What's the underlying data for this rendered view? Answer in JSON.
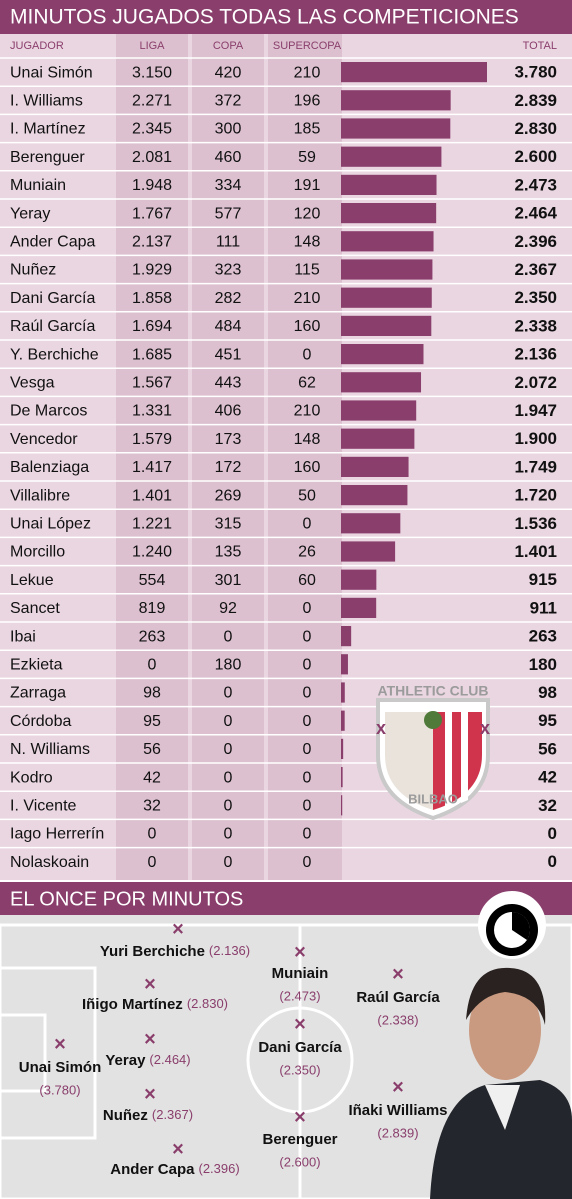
{
  "header": {
    "title": "MINUTOS JUGADOS TODAS LAS COMPETICIONES"
  },
  "table": {
    "columns": [
      "JUGADOR",
      "LIGA",
      "COPA",
      "SUPERCOPA",
      "TOTAL"
    ],
    "rows": [
      [
        "Unai Simón",
        "3.150",
        "420",
        "210",
        {
          "value": 3780,
          "label": "3.780"
        }
      ],
      [
        "I. Williams",
        "2.271",
        "372",
        "196",
        {
          "value": 2839,
          "label": "2.839"
        }
      ],
      [
        "I. Martínez",
        "2.345",
        "300",
        "185",
        {
          "value": 2830,
          "label": "2.830"
        }
      ],
      [
        "Berenguer",
        "2.081",
        "460",
        "59",
        {
          "value": 2600,
          "label": "2.600"
        }
      ],
      [
        "Muniain",
        "1.948",
        "334",
        "191",
        {
          "value": 2473,
          "label": "2.473"
        }
      ],
      [
        "Yeray",
        "1.767",
        "577",
        "120",
        {
          "value": 2464,
          "label": "2.464"
        }
      ],
      [
        "Ander Capa",
        "2.137",
        "111",
        "148",
        {
          "value": 2396,
          "label": "2.396"
        }
      ],
      [
        "Nuñez",
        "1.929",
        "323",
        "115",
        {
          "value": 2367,
          "label": "2.367"
        }
      ],
      [
        "Dani García",
        "1.858",
        "282",
        "210",
        {
          "value": 2350,
          "label": "2.350"
        }
      ],
      [
        "Raúl García",
        "1.694",
        "484",
        "160",
        {
          "value": 2338,
          "label": "2.338"
        }
      ],
      [
        "Y. Berchiche",
        "1.685",
        "451",
        "0",
        {
          "value": 2136,
          "label": "2.136"
        }
      ],
      [
        "Vesga",
        "1.567",
        "443",
        "62",
        {
          "value": 2072,
          "label": "2.072"
        }
      ],
      [
        "De Marcos",
        "1.331",
        "406",
        "210",
        {
          "value": 1947,
          "label": "1.947"
        }
      ],
      [
        "Vencedor",
        "1.579",
        "173",
        "148",
        {
          "value": 1900,
          "label": "1.900"
        }
      ],
      [
        "Balenziaga",
        "1.417",
        "172",
        "160",
        {
          "value": 1749,
          "label": "1.749"
        }
      ],
      [
        "Villalibre",
        "1.401",
        "269",
        "50",
        {
          "value": 1720,
          "label": "1.720"
        }
      ],
      [
        "Unai López",
        "1.221",
        "315",
        "0",
        {
          "value": 1536,
          "label": "1.536"
        }
      ],
      [
        "Morcillo",
        "1.240",
        "135",
        "26",
        {
          "value": 1401,
          "label": "1.401"
        }
      ],
      [
        "Lekue",
        "554",
        "301",
        "60",
        915
      ],
      [
        "Sancet",
        "819",
        "92",
        "0",
        911
      ],
      [
        "Ibai",
        "263",
        "0",
        "0",
        263
      ],
      [
        "Ezkieta",
        "0",
        "180",
        "0",
        180
      ],
      [
        "Zarraga",
        "98",
        "0",
        "0",
        98
      ],
      [
        "Córdoba",
        "95",
        "0",
        "0",
        95
      ],
      [
        "N. Williams",
        "56",
        "0",
        "0",
        56
      ],
      [
        "Kodro",
        "42",
        "0",
        "0",
        42
      ],
      [
        "I. Vicente",
        "32",
        "0",
        "0",
        32
      ],
      [
        "Iago Herrerín",
        "0",
        "0",
        "0",
        0
      ],
      [
        "Nolaskoain",
        "0",
        "0",
        "0",
        0
      ]
    ]
  },
  "logo": {
    "top": "ATHLETIC CLUB",
    "bottom": "BILBAO"
  },
  "pitch": {
    "title": "EL ONCE POR MINUTOS",
    "players": [
      {
        "name": "Yuri Berchiche",
        "minutes": "(2.136)"
      },
      {
        "name": "Iñigo Martínez",
        "minutes": "(2.830)"
      },
      {
        "name": "Yeray",
        "minutes": "(2.464)"
      },
      {
        "name": "Nuñez",
        "minutes": "(2.367)"
      },
      {
        "name": "Ander Capa",
        "minutes": "(2.396)"
      },
      {
        "name": "Unai Simón",
        "minutes": "(3.780)"
      },
      {
        "name": "Muniain",
        "minutes": "(2.473)"
      },
      {
        "name": "Dani García",
        "minutes": "(2.350)"
      },
      {
        "name": "Berenguer",
        "minutes": "(2.600)"
      },
      {
        "name": "Raúl García",
        "minutes": "(2.338)"
      },
      {
        "name": "Iñaki Williams",
        "minutes": "(2.839)"
      }
    ]
  }
}
